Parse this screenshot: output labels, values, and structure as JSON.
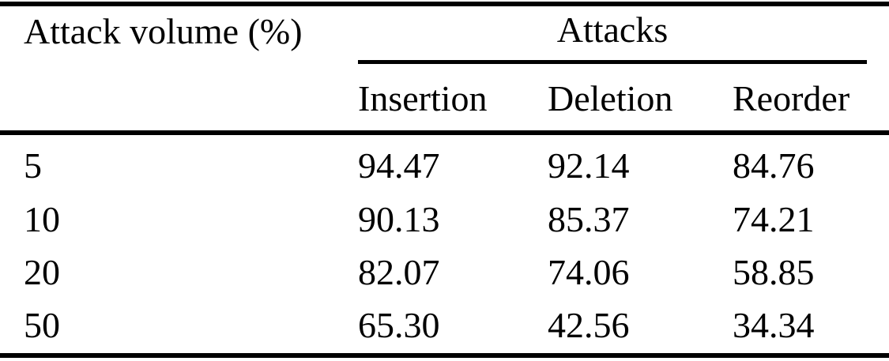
{
  "table": {
    "col1_header": "Attack volume (%)",
    "group_header": "Attacks",
    "sub_headers": [
      "Insertion",
      "Deletion",
      "Reorder"
    ],
    "rows": [
      {
        "volume": "5",
        "insertion": "94.47",
        "deletion": "92.14",
        "reorder": "84.76"
      },
      {
        "volume": "10",
        "insertion": "90.13",
        "deletion": "85.37",
        "reorder": "74.21"
      },
      {
        "volume": "20",
        "insertion": "82.07",
        "deletion": "74.06",
        "reorder": "58.85"
      },
      {
        "volume": "50",
        "insertion": "65.30",
        "deletion": "42.56",
        "reorder": "34.34"
      }
    ],
    "colors": {
      "text": "#000000",
      "background": "#ffffff",
      "rule": "#000000"
    }
  }
}
